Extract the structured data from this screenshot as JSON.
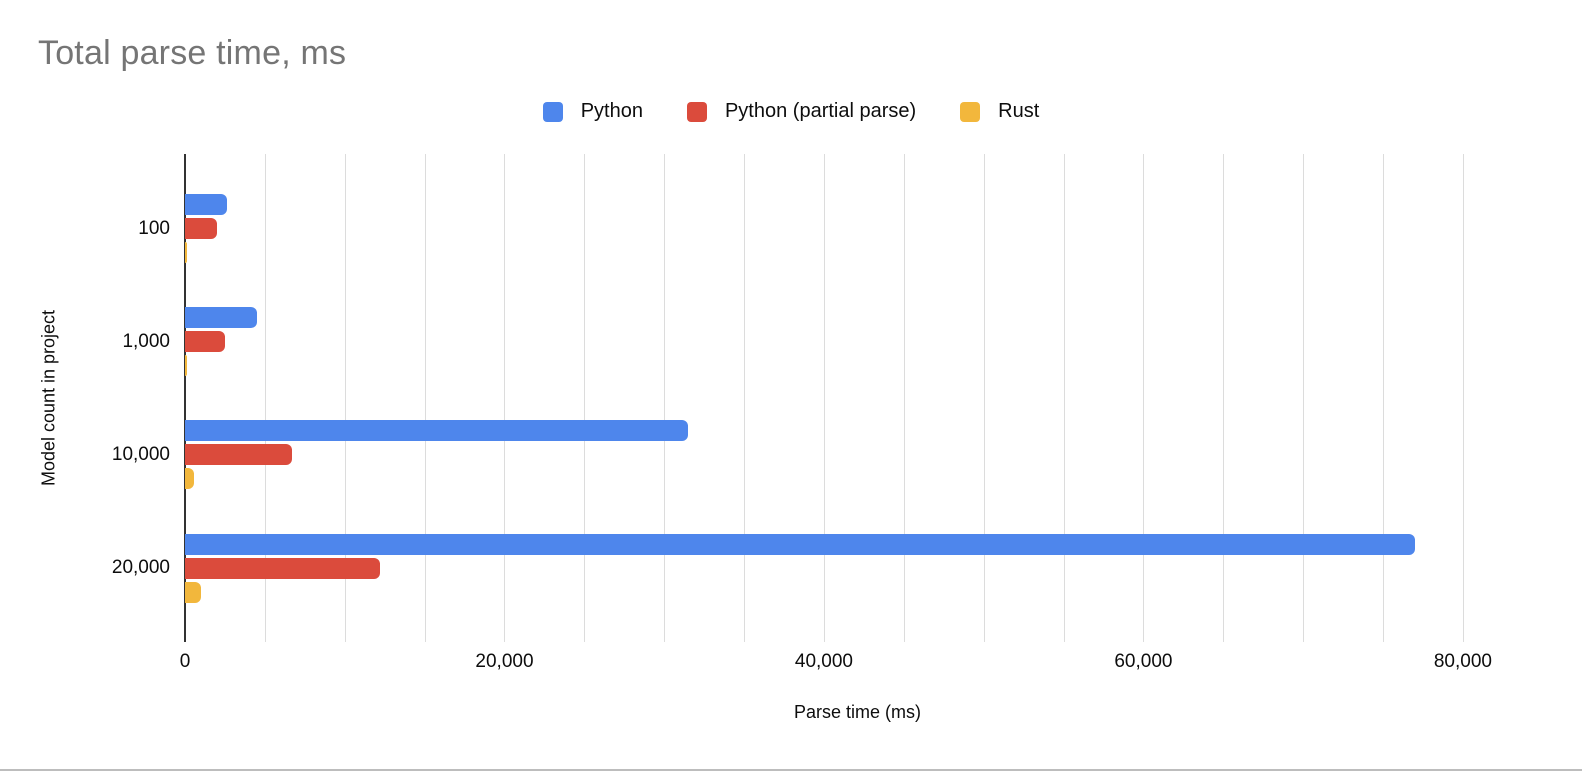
{
  "title": "Total parse time, ms",
  "chart_data": {
    "type": "bar",
    "orientation": "horizontal",
    "title": "Total parse time, ms",
    "xlabel": "Parse time (ms)",
    "ylabel": "Model count in project",
    "categories": [
      "100",
      "1,000",
      "10,000",
      "20,000"
    ],
    "series": [
      {
        "name": "Python",
        "color": "#4e86ec",
        "values": [
          2600,
          4500,
          31500,
          77000
        ]
      },
      {
        "name": "Python (partial parse)",
        "color": "#db4b3c",
        "values": [
          2000,
          2500,
          6700,
          12200
        ]
      },
      {
        "name": "Rust",
        "color": "#f2b73c",
        "values": [
          100,
          150,
          550,
          1000
        ]
      }
    ],
    "x_ticks": [
      {
        "value": 0,
        "label": "0"
      },
      {
        "value": 20000,
        "label": "20,000"
      },
      {
        "value": 40000,
        "label": "40,000"
      },
      {
        "value": 60000,
        "label": "60,000"
      },
      {
        "value": 80000,
        "label": "80,000"
      }
    ],
    "xlim": [
      0,
      84200
    ],
    "gridline_step": 5000,
    "grid": true,
    "legend_position": "top"
  },
  "colors": {
    "title_text": "#757575",
    "axis_line": "#333333",
    "gridline": "#dcdcdc",
    "label_text": "#0d0d0d",
    "bottom_rule": "#bdbdbd"
  }
}
